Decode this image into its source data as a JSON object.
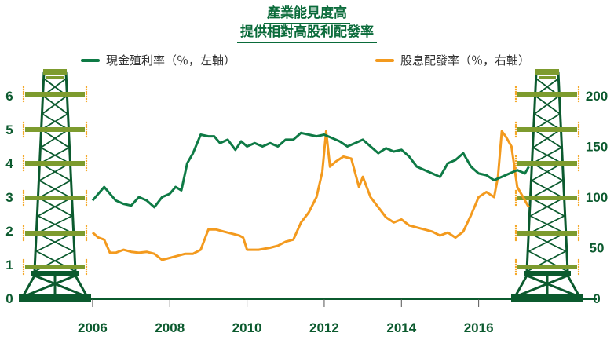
{
  "title_lines": [
    "產業能見度高",
    "提供相對高股利配發率"
  ],
  "chart_data": {
    "type": "line",
    "legend_placement": "top",
    "grid": false,
    "colors": {
      "series1": "#0e7a45",
      "series2": "#f39a1e",
      "axis_text": "#0b5a2e",
      "tower_dark": "#0b5a2e",
      "tower_light": "#7d9b2e",
      "tower_dot": "#f5a623"
    },
    "x_ticks": [
      "2006",
      "2008",
      "2010",
      "2012",
      "2014",
      "2016"
    ],
    "x_tick_values": [
      2006,
      2008,
      2010,
      2012,
      2014,
      2016
    ],
    "xlim": [
      2005.9,
      2017.35
    ],
    "y_left_ticks": [
      "0",
      "1",
      "2",
      "3",
      "4",
      "5",
      "6"
    ],
    "y_left_lim": [
      0,
      6
    ],
    "y_right_ticks": [
      "0",
      "50",
      "100",
      "150",
      "200"
    ],
    "y_right_lim": [
      0,
      200
    ],
    "series": [
      {
        "name": "現金殖利率（％，左軸）",
        "axis": "left",
        "x": [
          2006.0,
          2006.15,
          2006.3,
          2006.45,
          2006.6,
          2006.8,
          2007.0,
          2007.2,
          2007.4,
          2007.6,
          2007.8,
          2008.0,
          2008.15,
          2008.3,
          2008.45,
          2008.6,
          2008.8,
          2009.0,
          2009.15,
          2009.3,
          2009.5,
          2009.7,
          2009.85,
          2010.0,
          2010.2,
          2010.4,
          2010.6,
          2010.8,
          2011.0,
          2011.2,
          2011.4,
          2011.6,
          2011.8,
          2012.0,
          2012.2,
          2012.4,
          2012.6,
          2012.8,
          2013.0,
          2013.2,
          2013.4,
          2013.6,
          2013.8,
          2014.0,
          2014.2,
          2014.4,
          2014.6,
          2014.8,
          2015.0,
          2015.2,
          2015.4,
          2015.6,
          2015.8,
          2016.0,
          2016.2,
          2016.4,
          2016.6,
          2016.8,
          2017.0,
          2017.2,
          2017.3
        ],
        "values": [
          2.9,
          3.1,
          3.3,
          3.1,
          2.9,
          2.8,
          2.75,
          3.0,
          2.9,
          2.7,
          3.0,
          3.1,
          3.3,
          3.2,
          4.0,
          4.3,
          4.85,
          4.8,
          4.8,
          4.6,
          4.7,
          4.4,
          4.65,
          4.5,
          4.6,
          4.5,
          4.6,
          4.5,
          4.7,
          4.7,
          4.9,
          4.85,
          4.8,
          4.85,
          4.75,
          4.65,
          4.5,
          4.6,
          4.7,
          4.5,
          4.3,
          4.45,
          4.35,
          4.4,
          4.2,
          3.9,
          3.8,
          3.7,
          3.6,
          4.0,
          4.1,
          4.3,
          3.9,
          3.7,
          3.65,
          3.5,
          3.6,
          3.7,
          3.8,
          3.7,
          3.9
        ]
      },
      {
        "name": "股息配發率（％，右軸）",
        "axis": "right",
        "x": [
          2006.0,
          2006.15,
          2006.3,
          2006.45,
          2006.6,
          2006.8,
          2007.0,
          2007.2,
          2007.4,
          2007.6,
          2007.8,
          2008.0,
          2008.2,
          2008.4,
          2008.6,
          2008.8,
          2009.0,
          2009.2,
          2009.4,
          2009.6,
          2009.8,
          2009.9,
          2010.0,
          2010.3,
          2010.6,
          2010.8,
          2011.0,
          2011.2,
          2011.4,
          2011.6,
          2011.8,
          2011.95,
          2012.05,
          2012.15,
          2012.3,
          2012.5,
          2012.7,
          2012.9,
          2013.0,
          2013.2,
          2013.4,
          2013.6,
          2013.8,
          2014.0,
          2014.2,
          2014.4,
          2014.6,
          2014.8,
          2015.0,
          2015.2,
          2015.4,
          2015.6,
          2015.8,
          2016.0,
          2016.2,
          2016.4,
          2016.5,
          2016.6,
          2016.7,
          2016.85,
          2017.0,
          2017.15,
          2017.3
        ],
        "values": [
          65,
          60,
          58,
          45,
          45,
          48,
          46,
          45,
          46,
          44,
          38,
          40,
          42,
          44,
          44,
          48,
          68,
          68,
          66,
          64,
          62,
          60,
          48,
          48,
          50,
          52,
          56,
          58,
          75,
          85,
          100,
          125,
          165,
          130,
          135,
          140,
          138,
          110,
          120,
          100,
          90,
          80,
          75,
          78,
          72,
          70,
          68,
          66,
          62,
          65,
          60,
          66,
          82,
          100,
          105,
          100,
          120,
          165,
          160,
          150,
          110,
          100,
          90
        ]
      }
    ]
  }
}
